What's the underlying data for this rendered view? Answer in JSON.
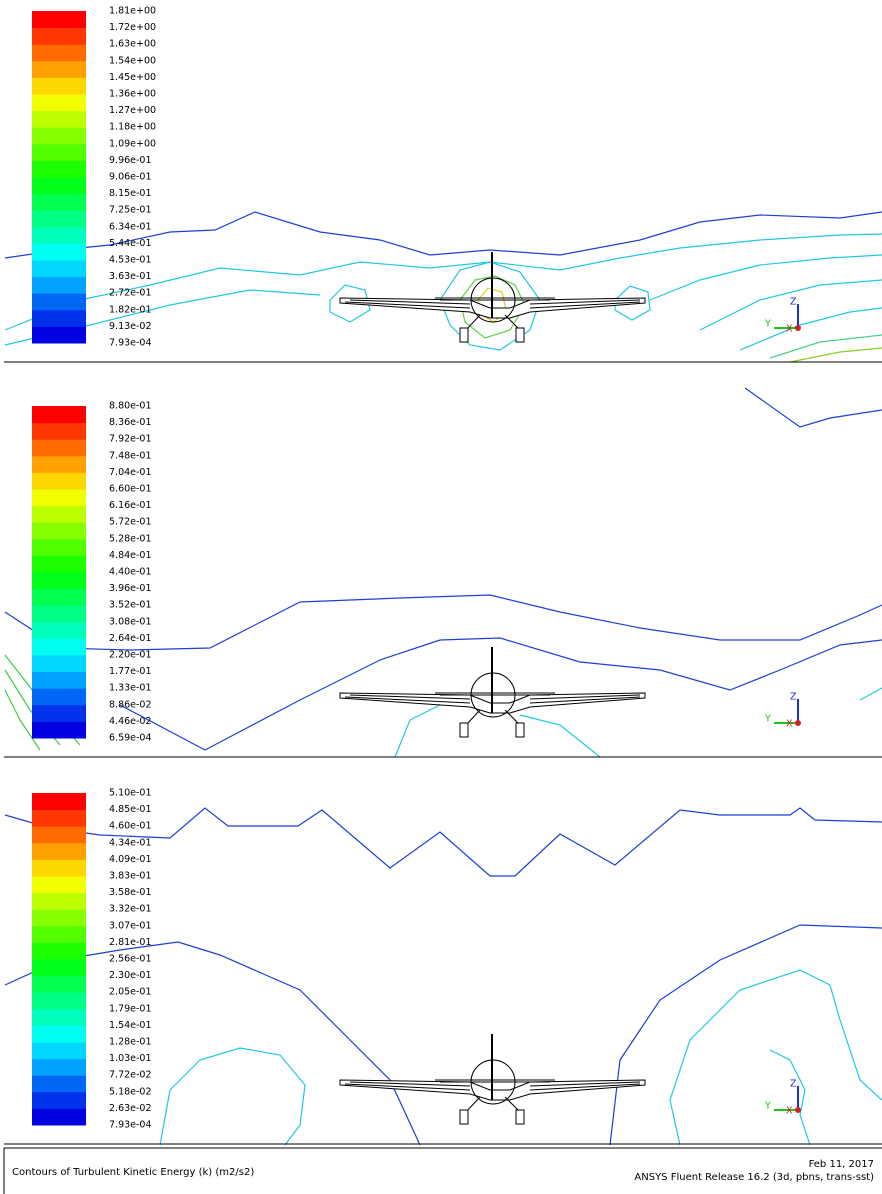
{
  "panels": [
    {
      "labels": [
        "1.81e+00",
        "1.72e+00",
        "1.63e+00",
        "1.54e+00",
        "1.45e+00",
        "1.36e+00",
        "1.27e+00",
        "1.18e+00",
        "1.09e+00",
        "9.96e-01",
        "9.06e-01",
        "8.15e-01",
        "7.25e-01",
        "6.34e-01",
        "5.44e-01",
        "4.53e-01",
        "3.63e-01",
        "2.72e-01",
        "1.82e-01",
        "9.13e-02",
        "7.93e-04"
      ]
    },
    {
      "labels": [
        "8.80e-01",
        "8.36e-01",
        "7.92e-01",
        "7.48e-01",
        "7.04e-01",
        "6.60e-01",
        "6.16e-01",
        "5.72e-01",
        "5.28e-01",
        "4.84e-01",
        "4.40e-01",
        "3.96e-01",
        "3.52e-01",
        "3.08e-01",
        "2.64e-01",
        "2.20e-01",
        "1.77e-01",
        "1.33e-01",
        "8.86e-02",
        "4.46e-02",
        "6.59e-04"
      ]
    },
    {
      "labels": [
        "5.10e-01",
        "4.85e-01",
        "4.60e-01",
        "4.34e-01",
        "4.09e-01",
        "3.83e-01",
        "3.58e-01",
        "3.32e-01",
        "3.07e-01",
        "2.81e-01",
        "2.56e-01",
        "2.30e-01",
        "2.05e-01",
        "1.79e-01",
        "1.54e-01",
        "1.28e-01",
        "1.03e-01",
        "7.72e-02",
        "5.18e-02",
        "2.63e-02",
        "7.93e-04"
      ]
    }
  ],
  "axes": {
    "z": "Z",
    "y": "Y",
    "x": "X"
  },
  "footer": {
    "caption": "Contours of Turbulent Kinetic Energy (k) (m2/s2)",
    "date": "Feb 11, 2017",
    "release": "ANSYS Fluent Release 16.2 (3d, pbns, trans-sst)"
  }
}
